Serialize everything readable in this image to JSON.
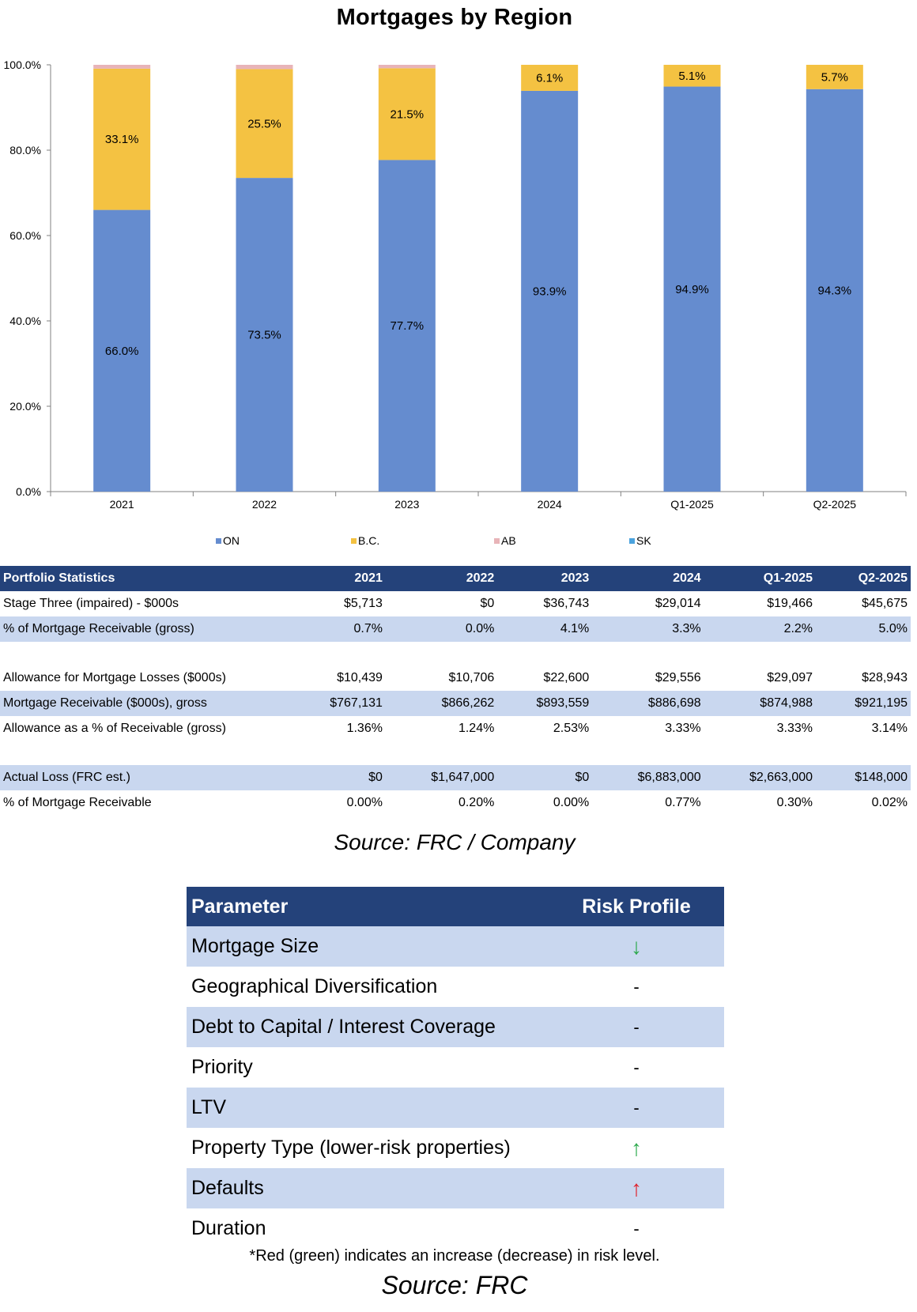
{
  "chart_data": {
    "type": "bar",
    "stacked": true,
    "title": "Mortgages by Region",
    "categories": [
      "2021",
      "2022",
      "2023",
      "2024",
      "Q1-2025",
      "Q2-2025"
    ],
    "series": [
      {
        "name": "ON",
        "values": [
          66.0,
          73.5,
          77.7,
          93.9,
          94.9,
          94.3
        ],
        "color": "#658ccf",
        "labels": [
          "66.0%",
          "73.5%",
          "77.7%",
          "93.9%",
          "94.9%",
          "94.3%"
        ]
      },
      {
        "name": "B.C.",
        "values": [
          33.1,
          25.5,
          21.5,
          6.1,
          5.1,
          5.7
        ],
        "color": "#f4c242",
        "labels": [
          "33.1%",
          "25.5%",
          "21.5%",
          "6.1%",
          "5.1%",
          "5.7%"
        ]
      },
      {
        "name": "AB",
        "values": [
          0.9,
          1.0,
          0.8,
          0,
          0,
          0
        ],
        "color": "#e8b4b8",
        "labels": []
      },
      {
        "name": "SK",
        "values": [
          0,
          0,
          0,
          0,
          0,
          0
        ],
        "color": "#4ba3de",
        "labels": []
      }
    ],
    "ylim": [
      0,
      100
    ],
    "yticks": [
      "0.0%",
      "20.0%",
      "40.0%",
      "60.0%",
      "80.0%",
      "100.0%"
    ],
    "ytick_values": [
      0,
      20,
      40,
      60,
      80,
      100
    ],
    "legend_position": "bottom",
    "grid": false
  },
  "portfolio": {
    "header": [
      "Portfolio Statistics",
      "2021",
      "2022",
      "2023",
      "2024",
      "Q1-2025",
      "Q2-2025"
    ],
    "rows": [
      {
        "label": "Stage Three (impaired) - $000s",
        "values": [
          "$5,713",
          "$0",
          "$36,743",
          "$29,014",
          "$19,466",
          "$45,675"
        ]
      },
      {
        "label": "% of Mortgage Receivable (gross)",
        "values": [
          "0.7%",
          "0.0%",
          "4.1%",
          "3.3%",
          "2.2%",
          "5.0%"
        ]
      },
      {
        "label": "Allowance for Mortgage Losses ($000s)",
        "values": [
          "$10,439",
          "$10,706",
          "$22,600",
          "$29,556",
          "$29,097",
          "$28,943"
        ]
      },
      {
        "label": "Mortgage Receivable ($000s), gross",
        "values": [
          "$767,131",
          "$866,262",
          "$893,559",
          "$886,698",
          "$874,988",
          "$921,195"
        ]
      },
      {
        "label": "Allowance as a % of Receivable (gross)",
        "values": [
          "1.36%",
          "1.24%",
          "2.53%",
          "3.33%",
          "3.33%",
          "3.14%"
        ]
      },
      {
        "label": "Actual Loss (FRC est.)",
        "values": [
          "$0",
          "$1,647,000",
          "$0",
          "$6,883,000",
          "$2,663,000",
          "$148,000"
        ]
      },
      {
        "label": "% of Mortgage Receivable",
        "values": [
          "0.00%",
          "0.20%",
          "0.00%",
          "0.77%",
          "0.30%",
          "0.02%"
        ]
      }
    ],
    "source": "Source: FRC / Company"
  },
  "risk": {
    "header": {
      "parameter": "Parameter",
      "profile": "Risk Profile"
    },
    "rows": [
      {
        "parameter": "Mortgage Size",
        "profile": "↓",
        "color": "#2aa84a"
      },
      {
        "parameter": "Geographical Diversification",
        "profile": "-"
      },
      {
        "parameter": "Debt to Capital / Interest Coverage",
        "profile": "-"
      },
      {
        "parameter": "Priority",
        "profile": "-"
      },
      {
        "parameter": "LTV",
        "profile": "-"
      },
      {
        "parameter": "Property Type (lower-risk properties)",
        "profile": "↑",
        "color": "#2aa84a"
      },
      {
        "parameter": "Defaults",
        "profile": "↑",
        "color": "#e0202a"
      },
      {
        "parameter": "Duration",
        "profile": "-"
      }
    ],
    "footnote": "*Red (green) indicates an increase (decrease) in risk level.",
    "source": "Source: FRC"
  }
}
